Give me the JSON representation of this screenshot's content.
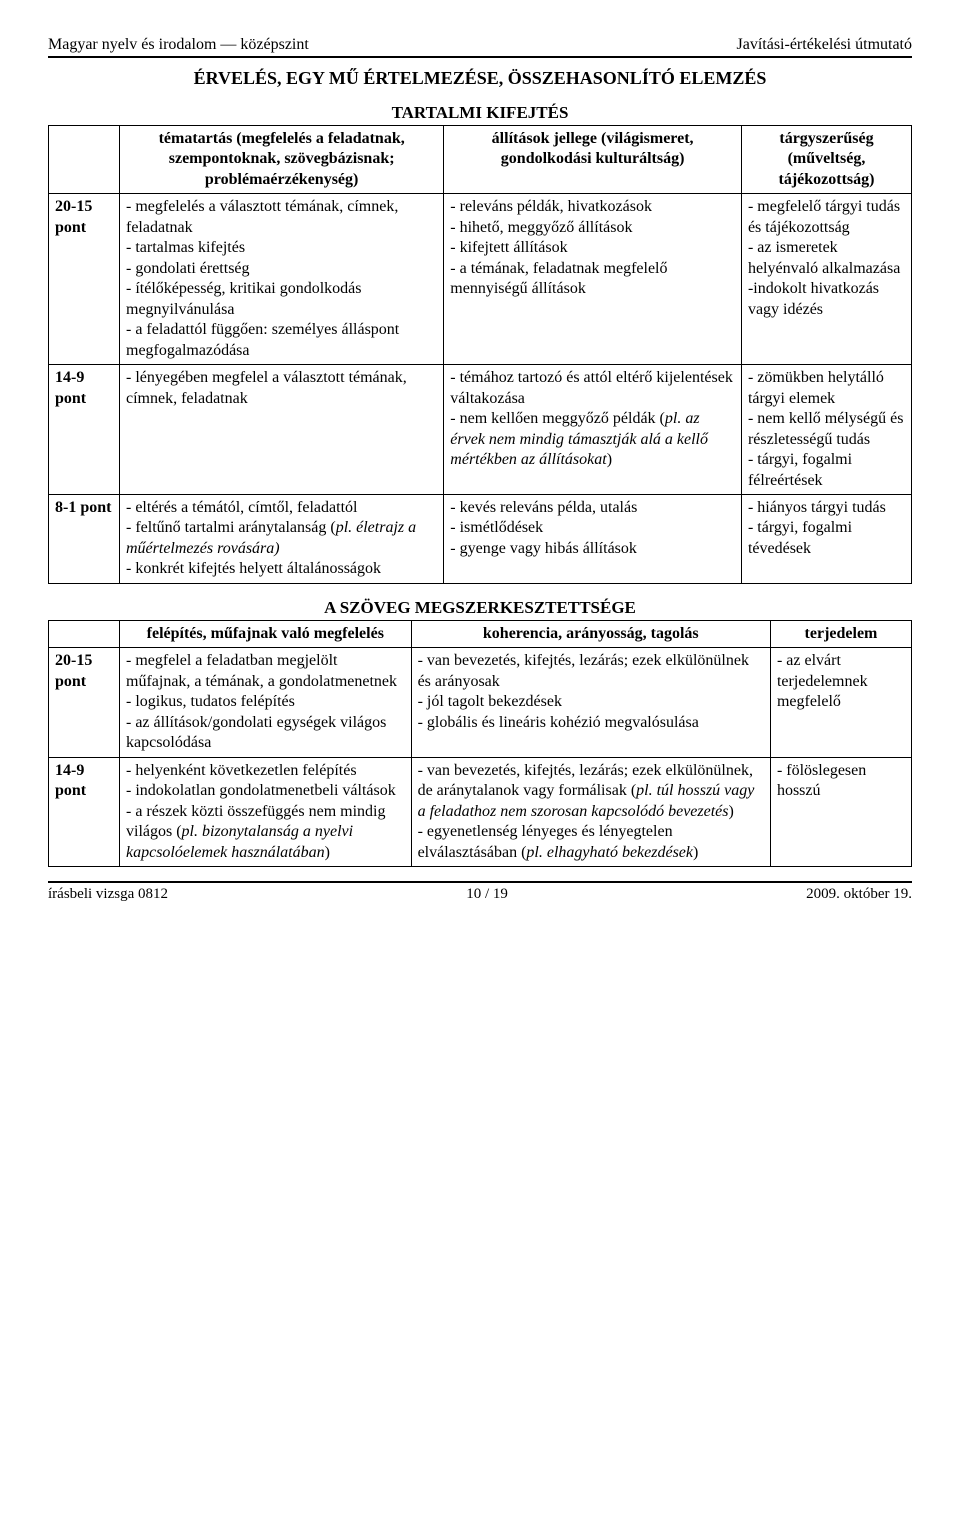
{
  "header": {
    "left": "Magyar nyelv és irodalom — középszint",
    "right": "Javítási-értékelési útmutató"
  },
  "title": "ÉRVELÉS, EGY MŰ ÉRTELMEZÉSE, ÖSSZEHASONLÍTÓ ELEMZÉS",
  "section1": {
    "title": "TARTALMI KIFEJTÉS",
    "cols": {
      "c1": "tématartás (megfelelés a feladatnak, szempontoknak, szövegbázisnak; problémaérzékenység)",
      "c2": "állítások jellege (világismeret, gondolkodási kulturáltság)",
      "c3": "tárgyszerűség (műveltség, tájékozottság)"
    },
    "rows": [
      {
        "score": "20-15 pont",
        "c1": "- megfelelés a választott témának, címnek, feladatnak\n- tartalmas kifejtés\n- gondolati érettség\n- ítélőképesség, kritikai gondolkodás megnyilvánulása\n- a feladattól függően: személyes álláspont megfogalmazódása",
        "c2": "- releváns példák, hivatkozások\n- hihető, meggyőző állítások\n- kifejtett állítások\n- a témának, feladatnak megfelelő mennyiségű állítások",
        "c3": "- megfelelő tárgyi tudás és tájékozottság\n- az ismeretek helyénvaló alkalmazása\n-indokolt hivatkozás vagy idézés"
      },
      {
        "score": "14-9 pont",
        "c1": "- lényegében megfelel a választott témának, címnek, feladatnak",
        "c2a": "- témához tartozó és attól eltérő kijelentések váltakozása\n- nem kellően meggyőző példák (",
        "c2b": "pl. az érvek nem mindig támasztják alá a kellő mértékben az állításokat",
        "c2c": ")",
        "c3": "- zömükben helytálló tárgyi elemek\n- nem kellő mélységű és részletességű tudás\n- tárgyi, fogalmi félreértések"
      },
      {
        "score": "8-1 pont",
        "c1a": "- eltérés a témától, címtől, feladattól\n- feltűnő tartalmi aránytalanság (",
        "c1b": "pl. életrajz a műértelmezés rovására)",
        "c1c": "\n- konkrét kifejtés helyett általánosságok",
        "c2": "- kevés releváns példa, utalás\n- ismétlődések\n- gyenge vagy hibás állítások",
        "c3": "- hiányos tárgyi tudás\n- tárgyi, fogalmi tévedések"
      }
    ]
  },
  "section2": {
    "title": "A SZÖVEG MEGSZERKESZTETTSÉGE",
    "cols": {
      "c1": "felépítés, műfajnak való megfelelés",
      "c2": "koherencia, arányosság, tagolás",
      "c3": "terjedelem"
    },
    "rows": [
      {
        "score": "20-15 pont",
        "c1": "- megfelel a feladatban megjelölt műfajnak, a témának, a gondolatmenetnek\n- logikus, tudatos felépítés\n- az állítások/gondolati egységek világos kapcsolódása",
        "c2": "- van bevezetés, kifejtés, lezárás; ezek elkülönülnek és arányosak\n- jól tagolt bekezdések\n- globális és lineáris kohézió megvalósulása",
        "c3": "- az elvárt terjedelemnek megfelelő"
      },
      {
        "score": "14-9 pont",
        "c1a": "- helyenként következetlen felépítés\n- indokolatlan gondolatmenetbeli váltások\n- a részek közti összefüggés nem mindig világos (",
        "c1b": "pl. bizonytalanság a nyelvi kapcsolóelemek használatában",
        "c1c": ")",
        "c2a": "- van bevezetés, kifejtés, lezárás; ezek elkülönülnek, de aránytalanok vagy formálisak (",
        "c2b": "pl. túl hosszú vagy a feladathoz nem szorosan kapcsolódó bevezetés",
        "c2c": ")\n- egyenetlenség lényeges és lényegtelen elválasztásában (",
        "c2d": "pl. elhagyható bekezdések",
        "c2e": ")",
        "c3": "- fölöslegesen hosszú"
      }
    ]
  },
  "footer": {
    "left": "írásbeli vizsga 0812",
    "center": "10 / 19",
    "right": "2009. október 19."
  }
}
